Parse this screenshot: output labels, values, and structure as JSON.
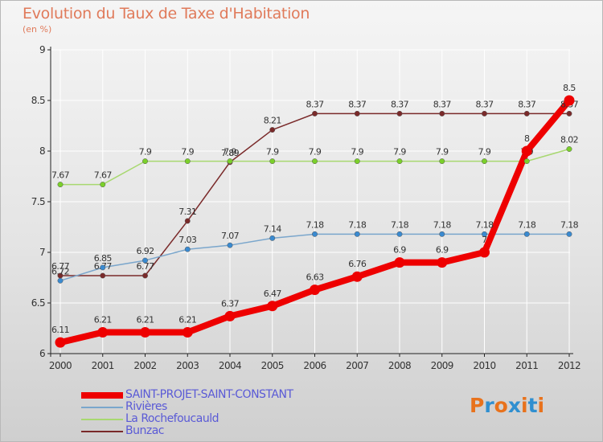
{
  "title": "Evolution du Taux de Taxe d'Habitation",
  "subtitle": "(en %)",
  "logo": {
    "text": "Proxiti",
    "letter_colors": [
      "#e8721c",
      "#2f8fd0",
      "#e8721c",
      "#2f8fd0",
      "#e8721c",
      "#2f8fd0",
      "#e8721c"
    ]
  },
  "colors": {
    "axis": "#222222",
    "grid": "#ffffff",
    "tick_label": "#333333",
    "value_label": "#333333"
  },
  "chart_data": {
    "type": "line",
    "title": "Evolution du Taux de Taxe d'Habitation",
    "ylabel": "(en %)",
    "xlabel": "",
    "ylim": [
      6,
      9
    ],
    "yticks": [
      "6",
      "6.5",
      "7",
      "7.5",
      "8",
      "8.5",
      "9"
    ],
    "x": [
      "2000",
      "2001",
      "2002",
      "2003",
      "2004",
      "2005",
      "2006",
      "2007",
      "2008",
      "2009",
      "2010",
      "2011",
      "2012"
    ],
    "series": [
      {
        "name": "Bunzac",
        "color": "#7a2a2a",
        "marker": "#7a2a2a",
        "weight": "thin",
        "values": [
          6.77,
          6.77,
          6.77,
          7.31,
          7.89,
          8.21,
          8.37,
          8.37,
          8.37,
          8.37,
          8.37,
          8.37,
          8.37
        ],
        "labels": [
          "6.77",
          "6.77",
          "6.77",
          "7.31",
          "7.89",
          "8.21",
          "8.37",
          "8.37",
          "8.37",
          "8.37",
          "8.37",
          "8.37",
          "8.37"
        ]
      },
      {
        "name": "La Rochefoucauld",
        "color": "#a8d870",
        "marker": "#7bd02a",
        "weight": "thin",
        "values": [
          7.67,
          7.67,
          7.9,
          7.9,
          7.9,
          7.9,
          7.9,
          7.9,
          7.9,
          7.9,
          7.9,
          7.9,
          8.02
        ],
        "labels": [
          "7.67",
          "7.67",
          "7.9",
          "7.9",
          "7.9",
          "7.9",
          "7.9",
          "7.9",
          "7.9",
          "7.9",
          "7.9",
          "7.9",
          "8.02"
        ]
      },
      {
        "name": "Rivières",
        "color": "#7aa6cc",
        "marker": "#3a8ad0",
        "weight": "thin",
        "values": [
          6.72,
          6.85,
          6.92,
          7.03,
          7.07,
          7.14,
          7.18,
          7.18,
          7.18,
          7.18,
          7.18,
          7.18,
          7.18
        ],
        "labels": [
          "6.72",
          "6.85",
          "6.92",
          "7.03",
          "7.07",
          "7.14",
          "7.18",
          "7.18",
          "7.18",
          "7.18",
          "7.18",
          "7.18",
          "7.18"
        ]
      },
      {
        "name": "SAINT-PROJET-SAINT-CONSTANT",
        "color": "#ee0000",
        "marker": "#ee0000",
        "weight": "thick",
        "values": [
          6.11,
          6.21,
          6.21,
          6.21,
          6.37,
          6.47,
          6.63,
          6.76,
          6.9,
          6.9,
          7.0,
          8.0,
          8.5
        ],
        "labels": [
          "6.11",
          "6.21",
          "6.21",
          "6.21",
          "6.37",
          "6.47",
          "6.63",
          "6.76",
          "6.9",
          "6.9",
          "7",
          "8",
          "8.5"
        ]
      }
    ],
    "legend": {
      "placement": "bottom-left",
      "order": [
        "SAINT-PROJET-SAINT-CONSTANT",
        "Rivières",
        "La Rochefoucauld",
        "Bunzac"
      ]
    },
    "grid": true
  },
  "legend_items": [
    {
      "label": "SAINT-PROJET-SAINT-CONSTANT",
      "color": "#ee0000"
    },
    {
      "label": "Rivières",
      "color": "#7aa6cc"
    },
    {
      "label": "La Rochefoucauld",
      "color": "#a8d870"
    },
    {
      "label": "Bunzac",
      "color": "#7a2a2a"
    }
  ]
}
